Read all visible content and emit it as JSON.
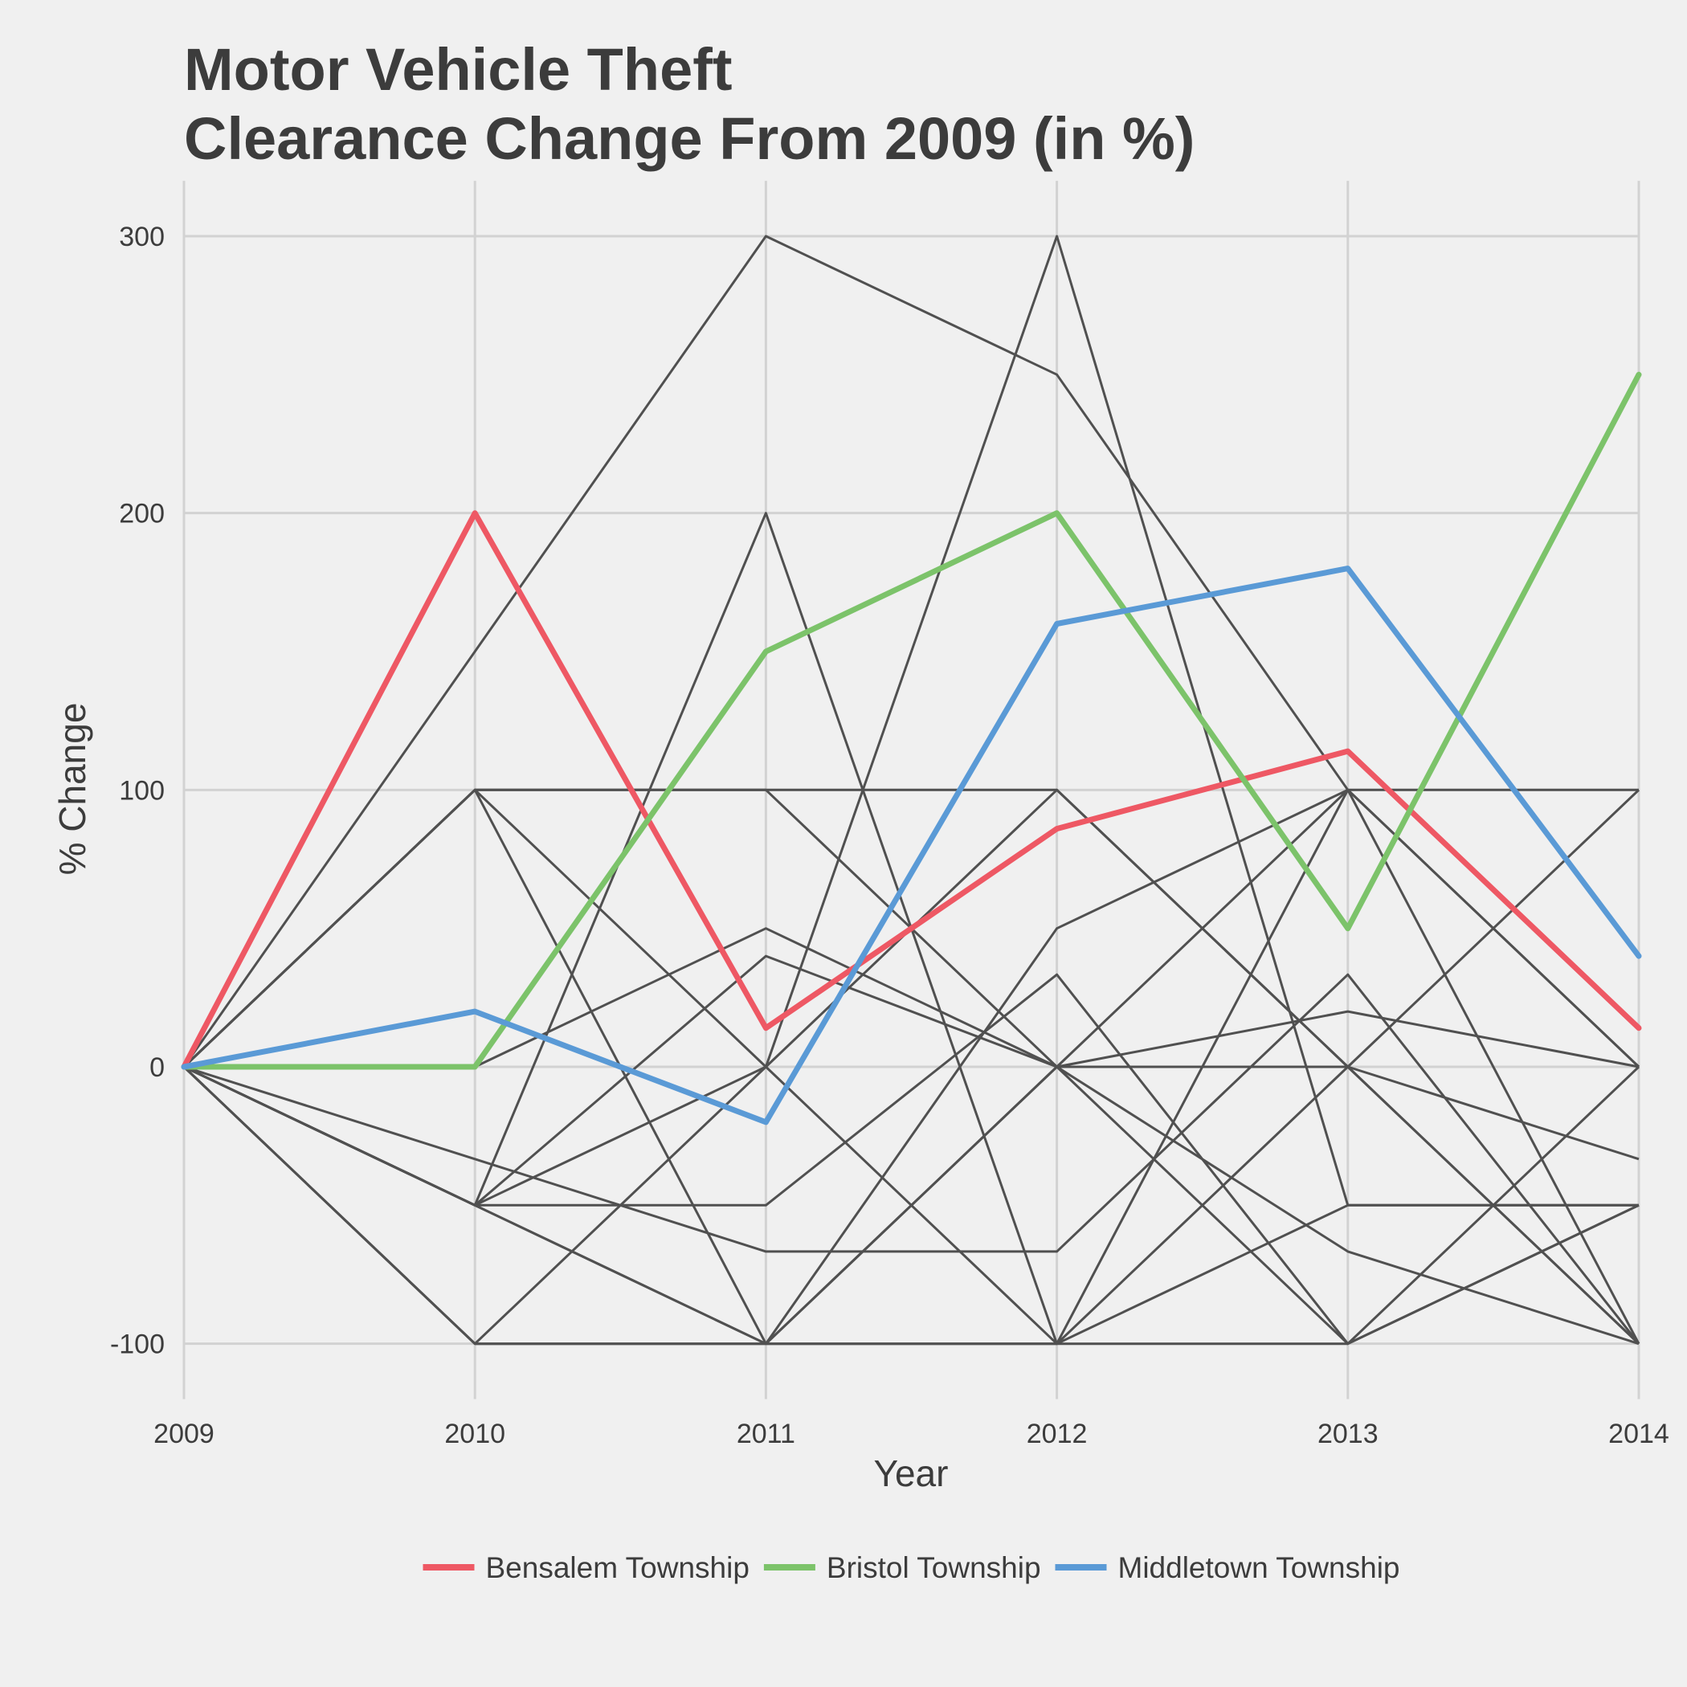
{
  "chart_data": {
    "type": "line",
    "title_lines": [
      "Motor Vehicle Theft",
      "Clearance Change From 2009 (in %)"
    ],
    "xlabel": "Year",
    "ylabel": "% Change",
    "x": [
      2009,
      2010,
      2011,
      2012,
      2013,
      2014
    ],
    "x_tick_labels": [
      "2009",
      "2010",
      "2011",
      "2012",
      "2013",
      "2014"
    ],
    "y_ticks": [
      -100,
      0,
      100,
      200,
      300
    ],
    "y_tick_labels": [
      "-100",
      "0",
      "100",
      "200",
      "300"
    ],
    "ylim": [
      -120,
      320
    ],
    "grid": true,
    "legend_position": "bottom",
    "background_series": [
      {
        "values": [
          0,
          150,
          300,
          250,
          100,
          0
        ]
      },
      {
        "values": [
          0,
          -100,
          0,
          300,
          -50,
          -50
        ]
      },
      {
        "values": [
          0,
          100,
          0,
          -100,
          100,
          100
        ]
      },
      {
        "values": [
          0,
          -50,
          200,
          -100,
          0,
          -33.3
        ]
      },
      {
        "values": [
          0,
          100,
          -100,
          0,
          -100,
          -50
        ]
      },
      {
        "values": [
          0,
          0,
          50,
          0,
          100,
          -100
        ]
      },
      {
        "values": [
          0,
          -50,
          0,
          100,
          0,
          -100
        ]
      },
      {
        "values": [
          0,
          -50,
          40,
          0,
          20,
          0
        ]
      },
      {
        "values": [
          0,
          -33.3,
          -66.7,
          -66.7,
          33.3,
          -100
        ]
      },
      {
        "values": [
          0,
          100,
          100,
          0,
          -66.7,
          -100
        ]
      },
      {
        "values": [
          0,
          -100,
          -100,
          50,
          100,
          0
        ]
      },
      {
        "values": [
          0,
          -50,
          -50,
          33.3,
          -100,
          -50
        ]
      },
      {
        "values": [
          0,
          -50,
          -100,
          -100,
          -100,
          0
        ]
      },
      {
        "values": [
          0,
          100,
          100,
          100,
          0,
          -100
        ]
      },
      {
        "values": [
          0,
          -100,
          -100,
          -100,
          -50,
          -50
        ]
      },
      {
        "values": [
          0,
          -50,
          -100,
          0,
          0,
          100
        ]
      }
    ],
    "series": [
      {
        "name": "Bensalem Township",
        "color": "#ee5864",
        "values": [
          0,
          200,
          14,
          86,
          114,
          14
        ]
      },
      {
        "name": "Bristol Township",
        "color": "#7cc36a",
        "values": [
          0,
          0,
          150,
          200,
          50,
          250
        ]
      },
      {
        "name": "Middletown Township",
        "color": "#5a9ad6",
        "values": [
          0,
          20,
          -20,
          160,
          180,
          40
        ]
      }
    ]
  }
}
